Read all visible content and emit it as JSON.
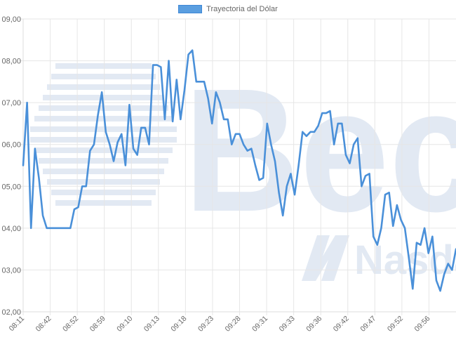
{
  "legend": {
    "label": "Trayectoria del Dólar"
  },
  "colors": {
    "line": "#4a90d9",
    "legend_fill": "#5a9ee0",
    "grid": "#e6e6e6",
    "watermark": "#e2e9f3"
  },
  "watermark": {
    "text": "Bec",
    "sub_text": "Nasdaq"
  },
  "chart_data": {
    "type": "line",
    "title": "",
    "xlabel": "",
    "ylabel": "",
    "legend_position": "top-center",
    "grid": true,
    "ylim": [
      802,
      809
    ],
    "y_tick_labels": [
      "02,00",
      "03,00",
      "04,00",
      "05,00",
      "06,00",
      "07,00",
      "08,00",
      "09,00"
    ],
    "x_tick_labels": [
      "08:11",
      "08:42",
      "08:52",
      "08:59",
      "09:10",
      "09:13",
      "09:18",
      "09:23",
      "09:28",
      "09:31",
      "09:33",
      "09:36",
      "09:42",
      "09:47",
      "09:52",
      "09:56"
    ],
    "series": [
      {
        "name": "Trayectoria del Dólar",
        "values": [
          805.5,
          807.0,
          804.0,
          805.9,
          805.2,
          804.3,
          804.0,
          804.0,
          804.0,
          804.0,
          804.0,
          804.0,
          804.0,
          804.45,
          804.5,
          805.0,
          805.0,
          805.85,
          806.0,
          806.7,
          807.25,
          806.3,
          806.0,
          805.6,
          806.05,
          806.25,
          805.5,
          806.95,
          805.9,
          805.75,
          806.4,
          806.4,
          806.0,
          807.9,
          807.9,
          807.85,
          806.6,
          808.0,
          806.55,
          807.55,
          806.6,
          807.3,
          808.15,
          808.25,
          807.5,
          807.5,
          807.5,
          807.1,
          806.5,
          807.25,
          807.0,
          806.6,
          806.6,
          806.0,
          806.25,
          806.25,
          806.0,
          805.85,
          805.9,
          805.5,
          805.15,
          805.2,
          806.5,
          806.0,
          805.6,
          804.85,
          804.3,
          805.0,
          805.3,
          804.8,
          805.5,
          806.3,
          806.2,
          806.3,
          806.3,
          806.45,
          806.75,
          806.75,
          806.8,
          806.0,
          806.5,
          806.5,
          805.75,
          805.55,
          806.0,
          806.15,
          805.0,
          805.25,
          805.3,
          803.8,
          803.6,
          804.0,
          804.8,
          804.85,
          804.05,
          804.55,
          804.2,
          804.0,
          803.3,
          802.55,
          803.65,
          803.6,
          804.0,
          803.4,
          803.8,
          802.75,
          802.5,
          802.9,
          803.15,
          803.0,
          803.5
        ]
      }
    ]
  }
}
